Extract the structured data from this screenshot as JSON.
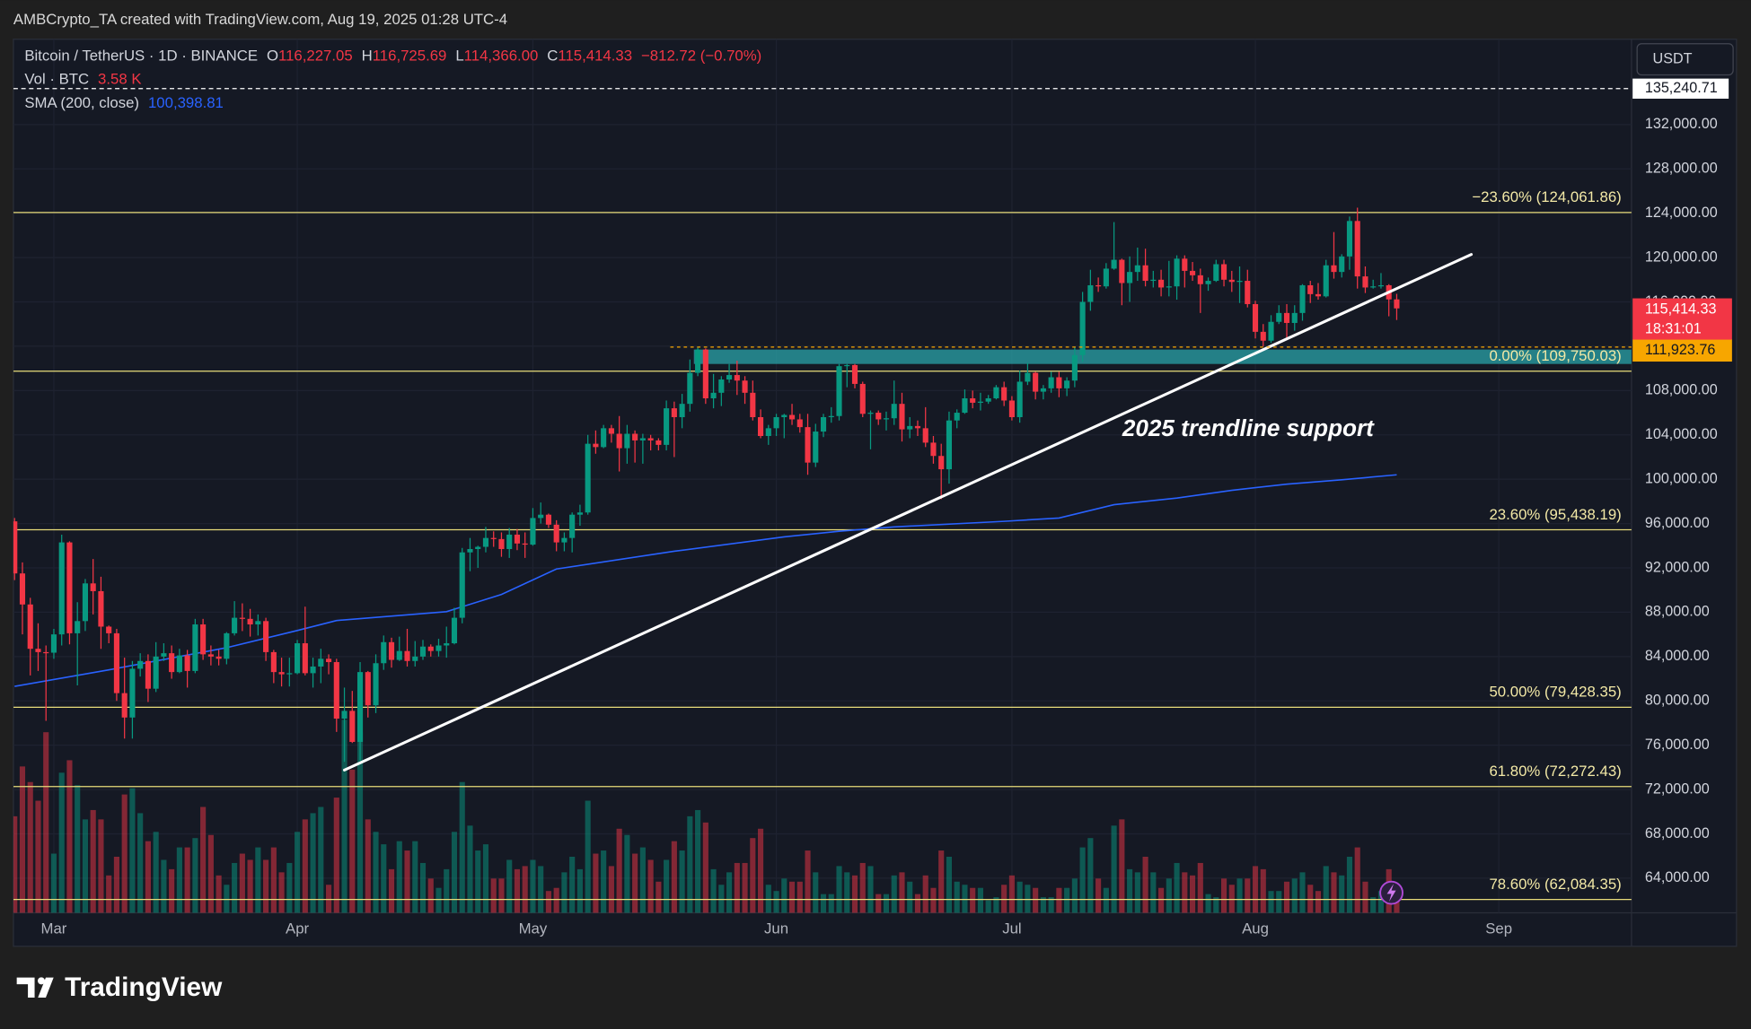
{
  "header": {
    "credit": "AMBCrypto_TA created with TradingView.com, Aug 19, 2025 01:28 UTC-4",
    "brand": "TradingView"
  },
  "legend": {
    "symbol": "Bitcoin / TetherUS · 1D · BINANCE",
    "o_key": "O",
    "open": "116,227.05",
    "h_key": "H",
    "high": "116,725.69",
    "l_key": "L",
    "low": "114,366.00",
    "c_key": "C",
    "close": "115,414.33",
    "change": "−812.72 (−0.70%)",
    "vol_name": "Vol · BTC",
    "vol": "3.58 K",
    "sma_name": "SMA (200, close)",
    "sma": "100,398.81"
  },
  "currency": "USDT",
  "chart_data": {
    "type": "candlestick",
    "grid": true,
    "up_color": "#089981",
    "down_color": "#f23645",
    "xlim": [
      -0.15,
      205.9
    ],
    "xticks": [
      {
        "value": 5,
        "label": "Mar"
      },
      {
        "value": 36,
        "label": "Apr"
      },
      {
        "value": 66,
        "label": "May"
      },
      {
        "value": 97,
        "label": "Jun"
      },
      {
        "value": 127,
        "label": "Jul"
      },
      {
        "value": 158,
        "label": "Aug"
      },
      {
        "value": 189,
        "label": "Sep"
      }
    ],
    "ylim": [
      60880,
      139700
    ],
    "yticks": [
      {
        "value": 64000,
        "label": "64,000.00"
      },
      {
        "value": 68000,
        "label": "68,000.00"
      },
      {
        "value": 72000,
        "label": "72,000.00"
      },
      {
        "value": 76000,
        "label": "76,000.00"
      },
      {
        "value": 80000,
        "label": "80,000.00"
      },
      {
        "value": 84000,
        "label": "84,000.00"
      },
      {
        "value": 88000,
        "label": "88,000.00"
      },
      {
        "value": 92000,
        "label": "92,000.00"
      },
      {
        "value": 96000,
        "label": "96,000.00"
      },
      {
        "value": 100000,
        "label": "100,000.00"
      },
      {
        "value": 104000,
        "label": "104,000.00"
      },
      {
        "value": 108000,
        "label": "108,000.00"
      },
      {
        "value": 112000,
        "label": "112,000.00"
      },
      {
        "value": 116000,
        "label": "116,000.00"
      },
      {
        "value": 120000,
        "label": "120,000.00"
      },
      {
        "value": 124000,
        "label": "124,000.00"
      },
      {
        "value": 128000,
        "label": "128,000.00"
      },
      {
        "value": 132000,
        "label": "132,000.00"
      }
    ],
    "open": [
      96200,
      91500,
      88700,
      84700,
      84400,
      84350,
      86000,
      94300,
      86100,
      87200,
      90600,
      89900,
      86700,
      86100,
      80700,
      78500,
      82900,
      83600,
      81100,
      84000,
      84300,
      82600,
      84100,
      82700,
      86900,
      84200,
      84000,
      83800,
      86100,
      87500,
      87400,
      86900,
      87200,
      84400,
      82600,
      82400,
      82500,
      85200,
      82500,
      83100,
      83800,
      83500,
      78400,
      79100,
      76300,
      82600,
      79600,
      83400,
      85300,
      83700,
      84500,
      83600,
      84000,
      84900,
      84500,
      85000,
      85200,
      87500,
      93400,
      93700,
      93900,
      94700,
      94600,
      93700,
      95000,
      94200,
      94100,
      96500,
      96800,
      95900,
      94300,
      94700,
      96800,
      97000,
      103200,
      102900,
      104600,
      104100,
      102800,
      104100,
      103500,
      103700,
      103500,
      103100,
      106400,
      105600,
      106800,
      109600,
      111700,
      107300,
      107800,
      109000,
      109400,
      108900,
      107800,
      105600,
      103900,
      104600,
      105600,
      105800,
      105400,
      104700,
      101500,
      104300,
      105600,
      105700,
      110200,
      110300,
      108600,
      105900,
      106000,
      105400,
      105500,
      106800,
      104500,
      104800,
      104600,
      103300,
      102100,
      100900,
      105300,
      106000,
      107300,
      106900,
      107000,
      107300,
      108300,
      107100,
      105600,
      108800,
      109600,
      107900,
      108200,
      109200,
      108200,
      108900,
      111200,
      116000,
      117500,
      117400,
      119000,
      119800,
      117700,
      118700,
      119300,
      117900,
      118000,
      117300,
      117400,
      119900,
      118800,
      118400,
      117600,
      117900,
      119400,
      118000,
      117800,
      117900,
      115800,
      113300,
      112500,
      114200,
      115000,
      114100,
      115000,
      117500,
      116700,
      116500,
      119300,
      118700,
      120100,
      123300,
      118300,
      117300,
      117400,
      117500,
      116227.05
    ],
    "high": [
      96500,
      92500,
      89300,
      87000,
      85000,
      86500,
      95000,
      94400,
      88900,
      91000,
      92800,
      91200,
      86800,
      86500,
      83900,
      83600,
      84300,
      84200,
      85300,
      85200,
      85000,
      84700,
      84600,
      87400,
      87400,
      85000,
      84600,
      86200,
      89000,
      88800,
      88300,
      87800,
      87500,
      84600,
      83900,
      83900,
      85500,
      88500,
      83900,
      84700,
      84200,
      83800,
      81200,
      80900,
      83500,
      82700,
      84200,
      85900,
      85700,
      85800,
      86500,
      85400,
      85500,
      85100,
      85600,
      86700,
      88400,
      93800,
      94700,
      94000,
      95700,
      95300,
      95200,
      95600,
      95500,
      95200,
      97400,
      97900,
      96900,
      96300,
      95200,
      97000,
      97700,
      104000,
      104400,
      104900,
      104900,
      105700,
      104900,
      104400,
      104100,
      104000,
      103700,
      107100,
      107000,
      107700,
      110800,
      111900,
      111800,
      109500,
      109300,
      110400,
      110700,
      109300,
      108900,
      106300,
      104900,
      105900,
      105900,
      106800,
      105900,
      105900,
      105000,
      105900,
      106500,
      110400,
      110400,
      110400,
      108800,
      106200,
      106200,
      106100,
      108900,
      107800,
      105600,
      105300,
      106500,
      103900,
      103200,
      106100,
      106300,
      108100,
      108000,
      107800,
      107600,
      108500,
      108800,
      107500,
      109800,
      110500,
      109700,
      108500,
      109700,
      109700,
      109200,
      111900,
      116900,
      118900,
      118200,
      119500,
      123200,
      119900,
      120100,
      120900,
      120800,
      118800,
      118900,
      119700,
      120200,
      120200,
      119600,
      119000,
      118200,
      119800,
      119800,
      118800,
      119200,
      118900,
      116100,
      114000,
      114800,
      115700,
      115800,
      115700,
      117600,
      117900,
      117700,
      119800,
      122300,
      120300,
      123700,
      124500,
      119200,
      118000,
      118600,
      117600,
      116725.69
    ],
    "low": [
      90900,
      86000,
      82300,
      82700,
      78200,
      83800,
      85000,
      85100,
      81400,
      86300,
      87800,
      84700,
      85200,
      80000,
      76600,
      76600,
      82200,
      79900,
      80800,
      83600,
      82000,
      82500,
      81200,
      82500,
      83700,
      83200,
      83200,
      83300,
      85900,
      86300,
      85800,
      85900,
      83600,
      81600,
      81300,
      81300,
      82400,
      82300,
      81200,
      81600,
      82400,
      77200,
      74500,
      76200,
      74600,
      78500,
      78900,
      82800,
      83000,
      83600,
      83100,
      83100,
      83700,
      84000,
      84000,
      83900,
      85100,
      87000,
      91700,
      92000,
      93400,
      93900,
      93000,
      92900,
      93600,
      92900,
      94000,
      96000,
      95600,
      93500,
      93500,
      93400,
      95800,
      96800,
      102300,
      102800,
      103300,
      100700,
      101400,
      101500,
      101400,
      102600,
      102600,
      102600,
      102000,
      104600,
      106100,
      109300,
      106800,
      106400,
      106600,
      108700,
      107600,
      106800,
      105300,
      103700,
      103100,
      103900,
      103700,
      104900,
      104200,
      100400,
      101100,
      103800,
      105100,
      105300,
      108300,
      108200,
      105600,
      102700,
      104900,
      104400,
      104900,
      103400,
      103700,
      103900,
      102900,
      101400,
      98200,
      99600,
      104600,
      105900,
      106400,
      106200,
      106800,
      107200,
      106600,
      105300,
      105100,
      108500,
      107200,
      107200,
      107800,
      107400,
      107500,
      108300,
      110600,
      115200,
      116900,
      117200,
      118900,
      115700,
      116000,
      117900,
      117400,
      117300,
      116500,
      116500,
      116200,
      117300,
      117900,
      115000,
      117000,
      117800,
      117400,
      116900,
      115900,
      115500,
      112700,
      112000,
      112300,
      114000,
      112600,
      113400,
      114300,
      115900,
      116200,
      116400,
      118100,
      118200,
      118900,
      117200,
      116800,
      117200,
      117200,
      114700,
      114366
    ],
    "close": [
      91500,
      88700,
      84700,
      84400,
      84350,
      86000,
      94300,
      86100,
      87200,
      90600,
      89900,
      86700,
      86100,
      80700,
      78500,
      82900,
      83600,
      81100,
      84000,
      84300,
      82600,
      84100,
      82700,
      86900,
      84200,
      84000,
      83800,
      86100,
      87500,
      87400,
      86900,
      87200,
      84400,
      82600,
      82400,
      82500,
      85200,
      82500,
      83100,
      83800,
      83500,
      78400,
      79100,
      76300,
      82600,
      79600,
      83400,
      85300,
      83700,
      84500,
      83600,
      84000,
      84900,
      84500,
      85000,
      85200,
      87500,
      93400,
      93700,
      93900,
      94700,
      94600,
      93700,
      95000,
      94200,
      94100,
      96500,
      96800,
      95900,
      94300,
      94700,
      96800,
      97000,
      103200,
      102900,
      104600,
      104100,
      102800,
      104100,
      103500,
      103700,
      103500,
      103100,
      106400,
      105600,
      106800,
      109600,
      111700,
      107300,
      107800,
      109000,
      109400,
      108900,
      107800,
      105600,
      103900,
      104600,
      105600,
      105800,
      105400,
      104700,
      101500,
      104300,
      105600,
      105700,
      110200,
      110300,
      108600,
      105900,
      106000,
      105400,
      105500,
      106800,
      104500,
      104800,
      104600,
      103300,
      102100,
      100900,
      105300,
      106000,
      107300,
      106900,
      107000,
      107300,
      108300,
      107100,
      105600,
      108800,
      109600,
      107900,
      108200,
      109200,
      108200,
      108900,
      111200,
      116000,
      117500,
      117400,
      119000,
      119800,
      117700,
      118700,
      119300,
      117900,
      118000,
      117300,
      117400,
      119900,
      118800,
      118400,
      117600,
      117900,
      119400,
      118000,
      117800,
      117900,
      115800,
      113300,
      112500,
      114200,
      115000,
      114100,
      115000,
      117500,
      116700,
      116500,
      119300,
      118700,
      120100,
      123300,
      118300,
      117300,
      117400,
      117500,
      116227.05,
      115414.33
    ],
    "volume": {
      "vlim": [
        0,
        86000
      ],
      "values": [
        31000,
        47000,
        42000,
        36000,
        58000,
        19000,
        45000,
        49000,
        41000,
        30000,
        33000,
        30000,
        12000,
        18000,
        38000,
        40000,
        32000,
        23000,
        26000,
        17000,
        14000,
        21000,
        21000,
        24000,
        34000,
        25000,
        12000,
        9000,
        16000,
        19000,
        17000,
        21000,
        17000,
        21000,
        13000,
        16000,
        26000,
        30000,
        32000,
        34000,
        9000,
        37000,
        62000,
        46000,
        58000,
        30000,
        26000,
        22000,
        14000,
        23000,
        20000,
        23000,
        16000,
        11000,
        8000,
        14000,
        26000,
        42000,
        28000,
        20000,
        22000,
        11000,
        11000,
        17000,
        14000,
        15000,
        17000,
        15000,
        7000,
        8000,
        13000,
        18000,
        14000,
        36000,
        19000,
        20000,
        15000,
        27000,
        25000,
        19000,
        21000,
        17000,
        10000,
        17000,
        23000,
        20000,
        31000,
        33000,
        29000,
        14000,
        9000,
        13000,
        16000,
        16000,
        24000,
        27000,
        9000,
        7000,
        11000,
        10000,
        10000,
        20000,
        13000,
        6000,
        6000,
        15000,
        13000,
        12000,
        16000,
        15000,
        6000,
        6000,
        12000,
        13000,
        10000,
        6000,
        12000,
        8000,
        20000,
        18000,
        10000,
        9000,
        8000,
        8000,
        4000,
        5000,
        9000,
        12000,
        10000,
        9000,
        8000,
        5000,
        5000,
        8000,
        8000,
        11000,
        21000,
        24000,
        11000,
        8000,
        28000,
        30000,
        14000,
        13000,
        18000,
        13000,
        8000,
        11000,
        16000,
        13000,
        12000,
        16000,
        6000,
        5000,
        11000,
        9000,
        11000,
        11000,
        15000,
        14000,
        7000,
        7000,
        10000,
        11000,
        13000,
        9000,
        7000,
        15000,
        13000,
        12000,
        18000,
        21000,
        10000,
        5000,
        7000,
        14000,
        3580
      ]
    },
    "sma": {
      "color": "#2962ff",
      "x": [
        0,
        12,
        27,
        36,
        41,
        55,
        62,
        69,
        84,
        98,
        105,
        112,
        126,
        133,
        140,
        148,
        155,
        162,
        169,
        176
      ],
      "values": [
        81310,
        82800,
        84800,
        86350,
        87250,
        88050,
        89600,
        91900,
        93500,
        94800,
        95300,
        95700,
        96200,
        96500,
        97700,
        98300,
        99000,
        99550,
        99950,
        100398.81
      ]
    },
    "fib_color": "#e8dc7a",
    "fib_levels": [
      {
        "value": 124061.86,
        "label": "−23.60% (124,061.86)"
      },
      {
        "value": 109750.03,
        "label": "0.00% (109,750.03)"
      },
      {
        "value": 95438.19,
        "label": "23.60% (95,438.19)"
      },
      {
        "value": 79428.35,
        "label": "50.00% (79,428.35)"
      },
      {
        "value": 72272.43,
        "label": "61.80% (72,272.43)"
      },
      {
        "value": 62084.35,
        "label": "78.60% (62,084.35)"
      }
    ],
    "zone": {
      "x_start": 86.5,
      "ylim": [
        110400,
        111700
      ],
      "color": "#2aa3a8"
    },
    "trendline": {
      "label": "2025 trendline support",
      "color": "#ffffff",
      "x": [
        42,
        185.5
      ],
      "values": [
        73760,
        120280
      ]
    },
    "high_line": {
      "value": 135240.71,
      "label": "135,240.71",
      "color": "#ffffff"
    },
    "alert_line": {
      "value": 111923.76,
      "label": "111,923.76",
      "color": "#f7a600",
      "x_start": 83.5
    },
    "last_price": {
      "value": 115414.33,
      "label": "115,414.33",
      "countdown": "18:31:01",
      "color": "#f23645"
    }
  }
}
